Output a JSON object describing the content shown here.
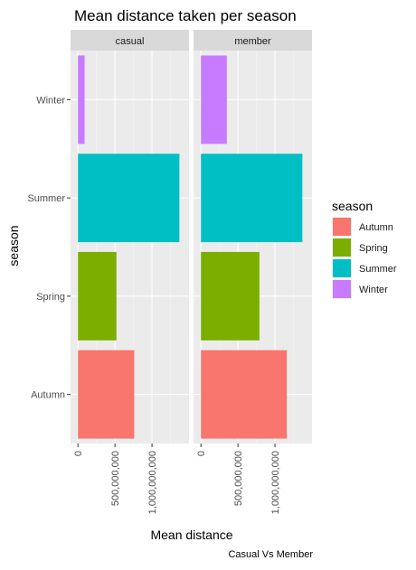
{
  "chart_data": {
    "type": "bar",
    "orientation": "horizontal",
    "title": "Mean distance taken per season",
    "xlabel": "Mean distance",
    "ylabel": "season",
    "caption": "Casual Vs Member",
    "categories": [
      "Autumn",
      "Spring",
      "Summer",
      "Winter"
    ],
    "x_ticks": [
      "0",
      "500,000,000",
      "1,000,000,000"
    ],
    "x_tick_values": [
      0,
      500000000,
      1000000000
    ],
    "xlim": [
      -100000000,
      1500000000
    ],
    "grid": true,
    "legend": {
      "title": "season",
      "placement": "right",
      "items": [
        {
          "label": "Autumn",
          "color": "#F8766D"
        },
        {
          "label": "Spring",
          "color": "#7CAE00"
        },
        {
          "label": "Summer",
          "color": "#00BFC4"
        },
        {
          "label": "Winter",
          "color": "#C77CFF"
        }
      ]
    },
    "panels": [
      {
        "strip": "casual",
        "values": [
          760000000,
          520000000,
          1370000000,
          90000000
        ]
      },
      {
        "strip": "member",
        "values": [
          1160000000,
          790000000,
          1370000000,
          350000000
        ]
      }
    ],
    "colors": {
      "panel_bg": "#EBEBEB",
      "strip_bg": "#D9D9D9",
      "grid_major": "#FFFFFF",
      "grid_minor": "#F5F5F5",
      "text": "#1A1A1A",
      "tick_text": "#4D4D4D"
    }
  }
}
